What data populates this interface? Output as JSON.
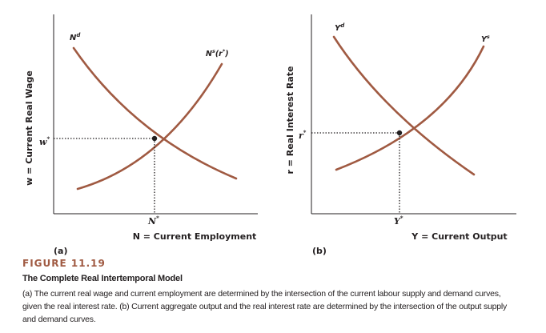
{
  "panels": [
    {
      "id": "a",
      "panel_label": "(a)",
      "y_axis_label": "w = Current Real Wage",
      "x_axis_label": "N = Current Employment",
      "y_eq_tick": "w*",
      "x_eq_tick": "N*",
      "demand_curve_label": "N^d",
      "supply_curve_label": "N^s(r*)"
    },
    {
      "id": "b",
      "panel_label": "(b)",
      "y_axis_label": "r = Real Interest Rate",
      "x_axis_label": "Y = Current Output",
      "y_eq_tick": "r*",
      "x_eq_tick": "Y*",
      "demand_curve_label": "Y^d",
      "supply_curve_label": "Y^s"
    }
  ],
  "figure": {
    "number": "FIGURE 11.19",
    "title": "The Complete Real Intertemporal Model",
    "caption": "(a) The current real wage and current employment are determined by the intersection of the current labour supply and demand curves, given the real interest rate. (b) Current aggregate output and the real interest rate are determined by the intersection of the output supply and demand curves."
  },
  "colors": {
    "curve": "#a05a42",
    "axis": "#231f20",
    "accent_title": "#a05a42"
  }
}
